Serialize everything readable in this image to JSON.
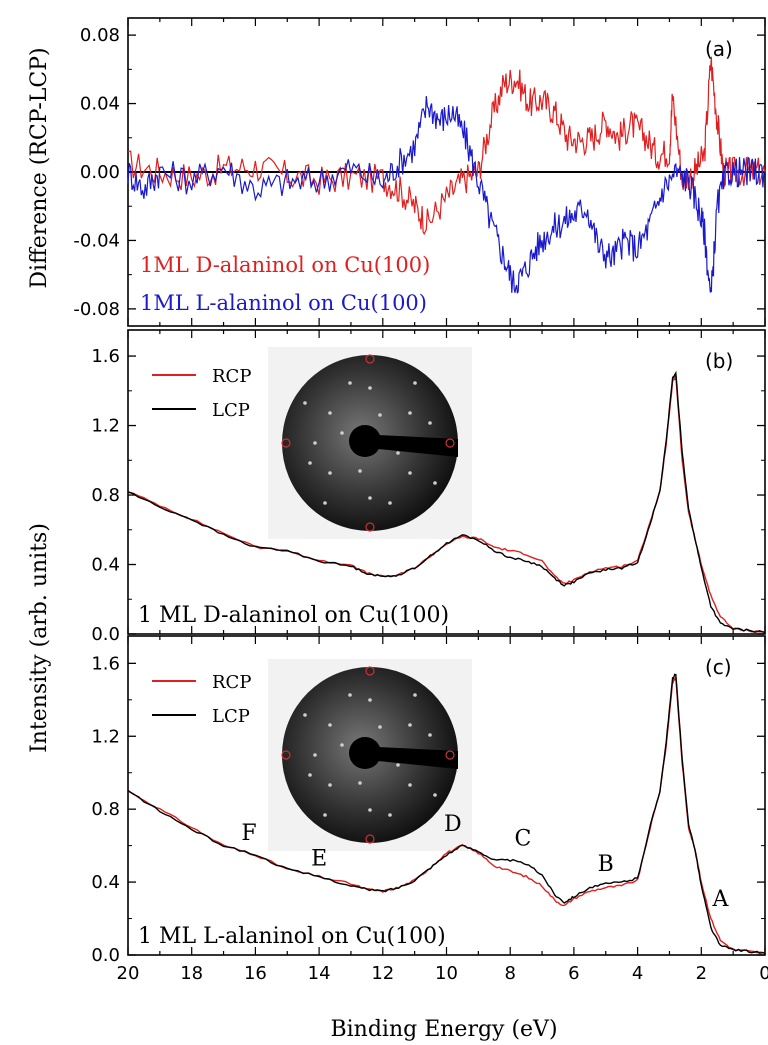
{
  "chart_data": [
    {
      "type": "line",
      "panel_label": "(a)",
      "ylabel": "Difference (RCP-LCP)",
      "xlim": [
        20,
        0
      ],
      "ylim": [
        -0.09,
        0.09
      ],
      "yticks": [
        "0.08",
        "0.04",
        "0.00",
        "-0.04",
        "-0.08"
      ],
      "zero_line": true,
      "annotations": [
        {
          "text": "1ML D-alaninol on Cu(100)",
          "color": "#e02020"
        },
        {
          "text": "1ML L-alaninol on Cu(100)",
          "color": "#1a1acc"
        }
      ],
      "series": [
        {
          "color": "#e02020",
          "x": [
            20,
            19,
            18,
            17,
            16,
            15,
            14,
            13,
            12,
            11.5,
            11,
            10.6,
            10,
            9.5,
            9,
            8.6,
            8.2,
            7.8,
            7.4,
            7,
            6.6,
            6.2,
            5.8,
            5.4,
            5,
            4.6,
            4.2,
            3.8,
            3.4,
            3,
            2.9,
            2.6,
            2.2,
            1.9,
            1.7,
            1.5,
            1.3,
            1,
            0.5,
            0
          ],
          "y": [
            0.005,
            0.0,
            -0.003,
            0.002,
            0.003,
            -0.002,
            -0.005,
            -0.003,
            -0.004,
            -0.01,
            -0.02,
            -0.03,
            -0.015,
            -0.005,
            0.0,
            0.03,
            0.052,
            0.055,
            0.04,
            0.042,
            0.035,
            0.02,
            0.018,
            0.02,
            0.03,
            0.02,
            0.028,
            0.022,
            0.01,
            0.012,
            0.045,
            -0.005,
            0.0,
            0.01,
            0.066,
            0.03,
            0.0,
            0.0,
            0.0,
            0.0
          ]
        },
        {
          "color": "#1a1acc",
          "x": [
            20,
            19.5,
            19,
            18,
            17,
            16,
            15,
            14,
            13,
            12,
            11.5,
            11,
            10.6,
            10.2,
            9.8,
            9.4,
            9,
            8.6,
            8.2,
            7.9,
            7.6,
            7.2,
            6.8,
            6.4,
            6,
            5.6,
            5.2,
            4.8,
            4.4,
            4,
            3.6,
            3.2,
            2.8,
            2.4,
            2.1,
            1.9,
            1.7,
            1.5,
            1.2,
            0.8,
            0.4,
            0
          ],
          "y": [
            0.0,
            -0.01,
            0.0,
            -0.005,
            0.003,
            -0.01,
            -0.006,
            -0.005,
            0.002,
            -0.006,
            0.005,
            0.015,
            0.04,
            0.03,
            0.035,
            0.02,
            -0.005,
            -0.03,
            -0.05,
            -0.065,
            -0.06,
            -0.045,
            -0.035,
            -0.03,
            -0.025,
            -0.02,
            -0.045,
            -0.05,
            -0.04,
            -0.045,
            -0.03,
            -0.01,
            0.0,
            -0.005,
            -0.02,
            -0.035,
            -0.075,
            -0.02,
            0.0,
            0.0,
            0.0,
            0.0
          ]
        }
      ]
    },
    {
      "type": "line",
      "panel_label": "(b)",
      "xlim": [
        20,
        0
      ],
      "ylim": [
        0,
        1.75
      ],
      "yticks": [
        "1.6",
        "1.2",
        "0.8",
        "0.4",
        "0.0"
      ],
      "annotation": "1 ML D-alaninol on Cu(100)",
      "inset_alt": "LEED pattern",
      "legend": [
        "RCP",
        "LCP"
      ],
      "series": [
        {
          "name": "RCP",
          "color": "#e02020",
          "x": [
            20,
            19,
            18,
            17,
            16,
            15,
            14,
            13,
            12.5,
            12,
            11.5,
            11,
            10.5,
            10,
            9.5,
            9,
            8.5,
            8,
            7.5,
            7,
            6.6,
            6.3,
            6,
            5.5,
            5,
            4.5,
            4,
            3.6,
            3.3,
            3.1,
            2.9,
            2.8,
            2.6,
            2.4,
            2.2,
            2,
            1.7,
            1.4,
            1,
            0.5,
            0
          ],
          "y": [
            0.82,
            0.74,
            0.66,
            0.58,
            0.5,
            0.48,
            0.42,
            0.4,
            0.35,
            0.33,
            0.34,
            0.38,
            0.45,
            0.52,
            0.56,
            0.55,
            0.5,
            0.48,
            0.46,
            0.42,
            0.33,
            0.29,
            0.31,
            0.36,
            0.38,
            0.39,
            0.42,
            0.65,
            0.82,
            1.1,
            1.45,
            1.48,
            1.0,
            0.7,
            0.55,
            0.4,
            0.22,
            0.1,
            0.03,
            0.02,
            0.01
          ]
        },
        {
          "name": "LCP",
          "color": "#000000",
          "x": [
            20,
            19,
            18,
            17,
            16,
            15,
            14,
            13,
            12.5,
            12,
            11.5,
            11,
            10.5,
            10,
            9.5,
            9,
            8.5,
            8,
            7.5,
            7,
            6.6,
            6.3,
            6,
            5.5,
            5,
            4.5,
            4,
            3.6,
            3.3,
            3.1,
            2.9,
            2.8,
            2.6,
            2.4,
            2.2,
            2,
            1.7,
            1.4,
            1,
            0.5,
            0
          ],
          "y": [
            0.82,
            0.73,
            0.66,
            0.57,
            0.5,
            0.48,
            0.42,
            0.39,
            0.35,
            0.33,
            0.34,
            0.38,
            0.45,
            0.52,
            0.57,
            0.54,
            0.48,
            0.44,
            0.42,
            0.39,
            0.32,
            0.28,
            0.3,
            0.35,
            0.37,
            0.38,
            0.41,
            0.64,
            0.82,
            1.12,
            1.47,
            1.5,
            1.05,
            0.72,
            0.55,
            0.38,
            0.16,
            0.06,
            0.03,
            0.02,
            0.01
          ]
        }
      ]
    },
    {
      "type": "line",
      "panel_label": "(c)",
      "xlabel": "Binding Energy (eV)",
      "xlim": [
        20,
        0
      ],
      "ylim": [
        0,
        1.75
      ],
      "xticks": [
        "20",
        "18",
        "16",
        "14",
        "12",
        "10",
        "8",
        "6",
        "4",
        "2",
        "0"
      ],
      "yticks": [
        "1.6",
        "1.2",
        "0.8",
        "0.4",
        "0.0"
      ],
      "annotation": "1 ML L-alaninol on Cu(100)",
      "inset_alt": "LEED pattern",
      "legend": [
        "RCP",
        "LCP"
      ],
      "peak_labels": [
        {
          "text": "F",
          "x": 16.2,
          "y": 0.63
        },
        {
          "text": "E",
          "x": 14.0,
          "y": 0.49
        },
        {
          "text": "D",
          "x": 9.8,
          "y": 0.68
        },
        {
          "text": "C",
          "x": 7.6,
          "y": 0.6
        },
        {
          "text": "B",
          "x": 5.0,
          "y": 0.46
        },
        {
          "text": "A",
          "x": 1.4,
          "y": 0.27
        }
      ],
      "series": [
        {
          "name": "RCP",
          "color": "#e02020",
          "x": [
            20,
            19,
            18,
            17,
            16,
            15,
            14,
            13,
            12.5,
            12,
            11.5,
            11,
            10.5,
            10,
            9.5,
            9,
            8.5,
            8,
            7.5,
            7,
            6.6,
            6.3,
            6,
            5.5,
            5,
            4.5,
            4,
            3.6,
            3.3,
            3.1,
            2.9,
            2.8,
            2.6,
            2.4,
            2.2,
            2,
            1.7,
            1.4,
            1,
            0.5,
            0
          ],
          "y": [
            0.9,
            0.8,
            0.7,
            0.6,
            0.55,
            0.47,
            0.43,
            0.39,
            0.36,
            0.35,
            0.37,
            0.41,
            0.48,
            0.56,
            0.6,
            0.56,
            0.49,
            0.46,
            0.43,
            0.38,
            0.3,
            0.27,
            0.31,
            0.35,
            0.37,
            0.38,
            0.41,
            0.7,
            0.9,
            1.15,
            1.5,
            1.52,
            1.05,
            0.7,
            0.58,
            0.4,
            0.2,
            0.08,
            0.03,
            0.02,
            0.01
          ]
        },
        {
          "name": "LCP",
          "color": "#000000",
          "x": [
            20,
            19,
            18,
            17,
            16,
            15,
            14,
            13,
            12.5,
            12,
            11.5,
            11,
            10.5,
            10,
            9.5,
            9,
            8.5,
            8,
            7.5,
            7,
            6.6,
            6.3,
            6,
            5.5,
            5,
            4.5,
            4,
            3.6,
            3.3,
            3.1,
            2.9,
            2.8,
            2.6,
            2.4,
            2.2,
            2,
            1.7,
            1.4,
            1,
            0.5,
            0
          ],
          "y": [
            0.9,
            0.79,
            0.69,
            0.6,
            0.55,
            0.47,
            0.43,
            0.38,
            0.36,
            0.35,
            0.37,
            0.41,
            0.48,
            0.55,
            0.6,
            0.57,
            0.52,
            0.52,
            0.5,
            0.44,
            0.33,
            0.29,
            0.32,
            0.37,
            0.39,
            0.4,
            0.42,
            0.71,
            0.9,
            1.17,
            1.52,
            1.54,
            1.07,
            0.72,
            0.58,
            0.38,
            0.15,
            0.05,
            0.03,
            0.02,
            0.01
          ]
        }
      ]
    }
  ]
}
